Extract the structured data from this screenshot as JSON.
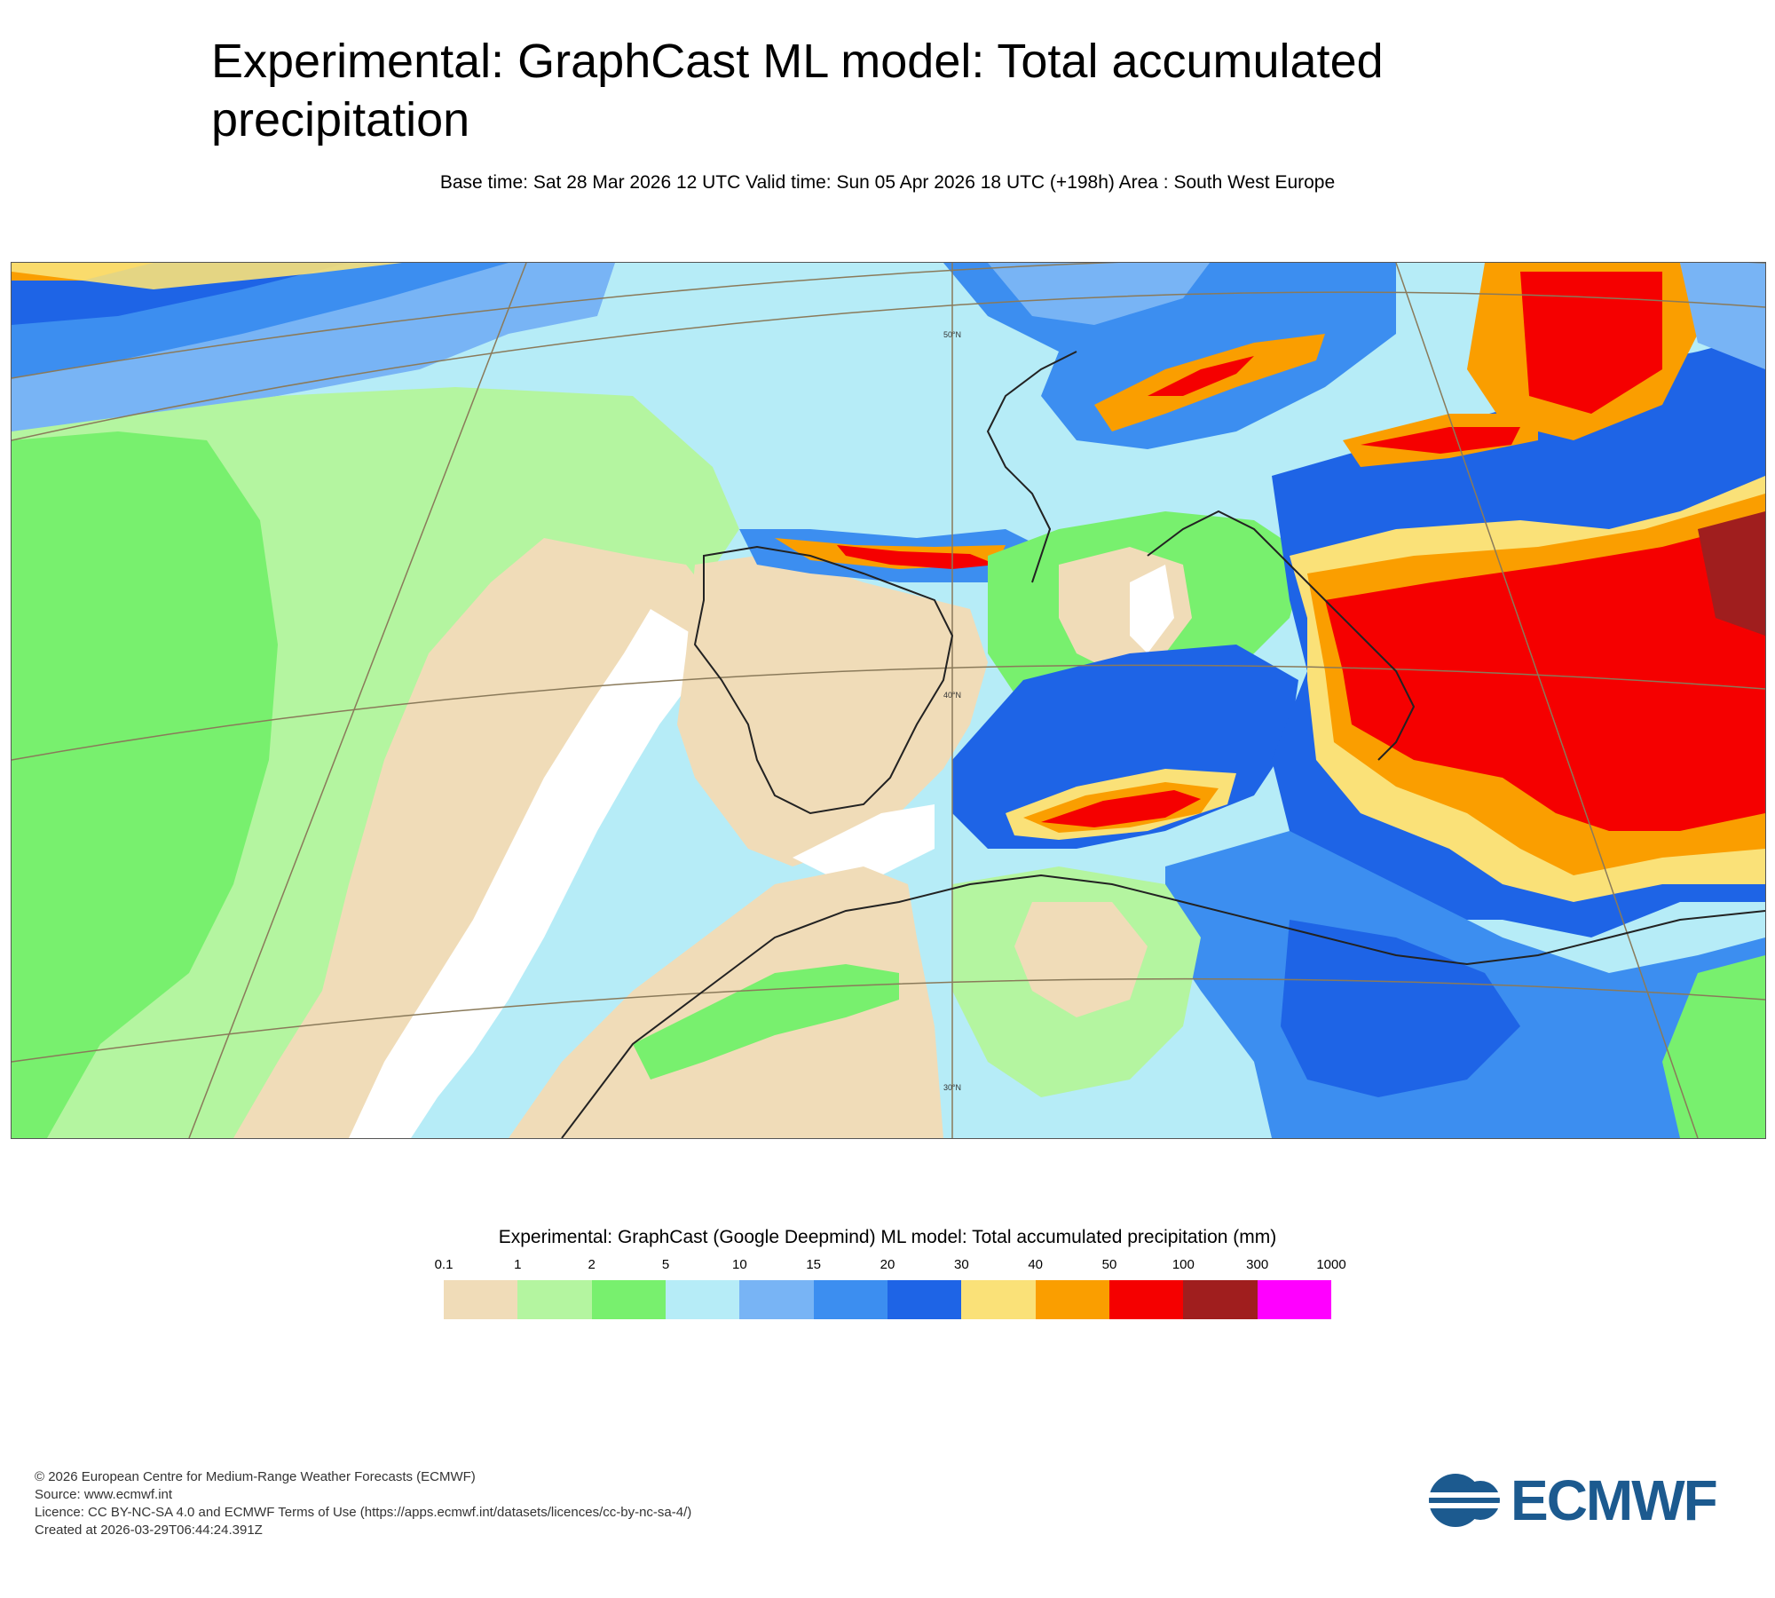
{
  "title": "Experimental: GraphCast ML model: Total accumulated precipitation",
  "subtitle": "Base time: Sat 28 Mar 2026 12 UTC Valid time: Sun 05 Apr 2026 18 UTC (+198h) Area : South West Europe",
  "map": {
    "lat_labels": [
      "50°N",
      "40°N",
      "30°N"
    ]
  },
  "legend": {
    "title": "Experimental: GraphCast (Google Deepmind) ML model: Total accumulated precipitation (mm)",
    "ticks": [
      "0.1",
      "1",
      "2",
      "5",
      "10",
      "15",
      "20",
      "30",
      "40",
      "50",
      "100",
      "300",
      "1000"
    ],
    "colors": [
      "#f0dcb8",
      "#b4f5a0",
      "#78f06e",
      "#b6ecf7",
      "#78b4f5",
      "#3c8ef0",
      "#1e64e6",
      "#fae178",
      "#fa9e00",
      "#f50000",
      "#a01e1e",
      "#ff00ff"
    ]
  },
  "footer": {
    "line1": "© 2026 European Centre for Medium-Range Weather Forecasts (ECMWF)",
    "line2": "Source: www.ecmwf.int",
    "line3": "Licence: CC BY-NC-SA 4.0 and ECMWF Terms of Use (https://apps.ecmwf.int/datasets/licences/cc-by-nc-sa-4/)",
    "line4": "Created at 2026-03-29T06:44:24.391Z"
  },
  "logo": {
    "text": "ECMWF",
    "color": "#1c5a8f"
  }
}
